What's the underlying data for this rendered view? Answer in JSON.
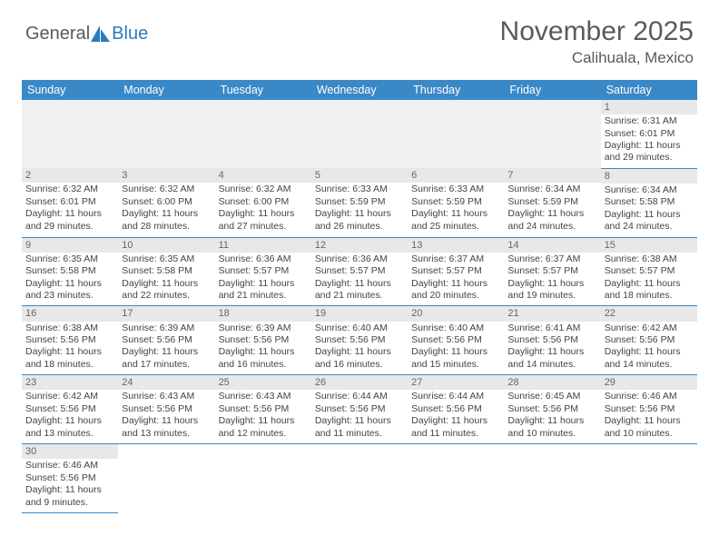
{
  "logo": {
    "text1": "General",
    "text2": "Blue"
  },
  "title": "November 2025",
  "location": "Calihuala, Mexico",
  "colors": {
    "header_bg": "#3b88c6",
    "header_text": "#ffffff",
    "day_bg": "#e8e8e8",
    "text": "#444444",
    "logo_gray": "#5a5a5a",
    "logo_blue": "#2b7bbf"
  },
  "day_headers": [
    "Sunday",
    "Monday",
    "Tuesday",
    "Wednesday",
    "Thursday",
    "Friday",
    "Saturday"
  ],
  "weeks": [
    [
      null,
      null,
      null,
      null,
      null,
      null,
      {
        "n": "1",
        "sr": "6:31 AM",
        "ss": "6:01 PM",
        "dl": "11 hours and 29 minutes."
      }
    ],
    [
      {
        "n": "2",
        "sr": "6:32 AM",
        "ss": "6:01 PM",
        "dl": "11 hours and 29 minutes."
      },
      {
        "n": "3",
        "sr": "6:32 AM",
        "ss": "6:00 PM",
        "dl": "11 hours and 28 minutes."
      },
      {
        "n": "4",
        "sr": "6:32 AM",
        "ss": "6:00 PM",
        "dl": "11 hours and 27 minutes."
      },
      {
        "n": "5",
        "sr": "6:33 AM",
        "ss": "5:59 PM",
        "dl": "11 hours and 26 minutes."
      },
      {
        "n": "6",
        "sr": "6:33 AM",
        "ss": "5:59 PM",
        "dl": "11 hours and 25 minutes."
      },
      {
        "n": "7",
        "sr": "6:34 AM",
        "ss": "5:59 PM",
        "dl": "11 hours and 24 minutes."
      },
      {
        "n": "8",
        "sr": "6:34 AM",
        "ss": "5:58 PM",
        "dl": "11 hours and 24 minutes."
      }
    ],
    [
      {
        "n": "9",
        "sr": "6:35 AM",
        "ss": "5:58 PM",
        "dl": "11 hours and 23 minutes."
      },
      {
        "n": "10",
        "sr": "6:35 AM",
        "ss": "5:58 PM",
        "dl": "11 hours and 22 minutes."
      },
      {
        "n": "11",
        "sr": "6:36 AM",
        "ss": "5:57 PM",
        "dl": "11 hours and 21 minutes."
      },
      {
        "n": "12",
        "sr": "6:36 AM",
        "ss": "5:57 PM",
        "dl": "11 hours and 21 minutes."
      },
      {
        "n": "13",
        "sr": "6:37 AM",
        "ss": "5:57 PM",
        "dl": "11 hours and 20 minutes."
      },
      {
        "n": "14",
        "sr": "6:37 AM",
        "ss": "5:57 PM",
        "dl": "11 hours and 19 minutes."
      },
      {
        "n": "15",
        "sr": "6:38 AM",
        "ss": "5:57 PM",
        "dl": "11 hours and 18 minutes."
      }
    ],
    [
      {
        "n": "16",
        "sr": "6:38 AM",
        "ss": "5:56 PM",
        "dl": "11 hours and 18 minutes."
      },
      {
        "n": "17",
        "sr": "6:39 AM",
        "ss": "5:56 PM",
        "dl": "11 hours and 17 minutes."
      },
      {
        "n": "18",
        "sr": "6:39 AM",
        "ss": "5:56 PM",
        "dl": "11 hours and 16 minutes."
      },
      {
        "n": "19",
        "sr": "6:40 AM",
        "ss": "5:56 PM",
        "dl": "11 hours and 16 minutes."
      },
      {
        "n": "20",
        "sr": "6:40 AM",
        "ss": "5:56 PM",
        "dl": "11 hours and 15 minutes."
      },
      {
        "n": "21",
        "sr": "6:41 AM",
        "ss": "5:56 PM",
        "dl": "11 hours and 14 minutes."
      },
      {
        "n": "22",
        "sr": "6:42 AM",
        "ss": "5:56 PM",
        "dl": "11 hours and 14 minutes."
      }
    ],
    [
      {
        "n": "23",
        "sr": "6:42 AM",
        "ss": "5:56 PM",
        "dl": "11 hours and 13 minutes."
      },
      {
        "n": "24",
        "sr": "6:43 AM",
        "ss": "5:56 PM",
        "dl": "11 hours and 13 minutes."
      },
      {
        "n": "25",
        "sr": "6:43 AM",
        "ss": "5:56 PM",
        "dl": "11 hours and 12 minutes."
      },
      {
        "n": "26",
        "sr": "6:44 AM",
        "ss": "5:56 PM",
        "dl": "11 hours and 11 minutes."
      },
      {
        "n": "27",
        "sr": "6:44 AM",
        "ss": "5:56 PM",
        "dl": "11 hours and 11 minutes."
      },
      {
        "n": "28",
        "sr": "6:45 AM",
        "ss": "5:56 PM",
        "dl": "11 hours and 10 minutes."
      },
      {
        "n": "29",
        "sr": "6:46 AM",
        "ss": "5:56 PM",
        "dl": "11 hours and 10 minutes."
      }
    ],
    [
      {
        "n": "30",
        "sr": "6:46 AM",
        "ss": "5:56 PM",
        "dl": "11 hours and 9 minutes."
      },
      null,
      null,
      null,
      null,
      null,
      null
    ]
  ],
  "labels": {
    "sunrise": "Sunrise:",
    "sunset": "Sunset:",
    "daylight": "Daylight:"
  }
}
